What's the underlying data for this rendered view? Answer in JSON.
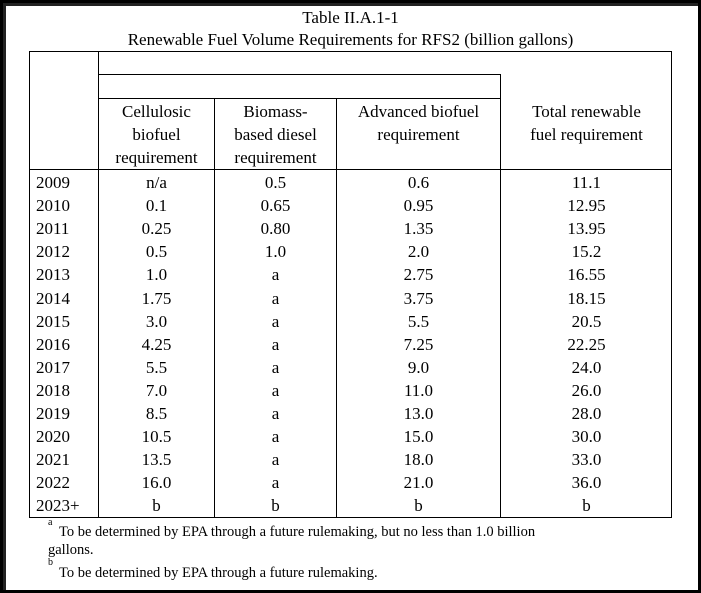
{
  "table": {
    "title": "Table II.A.1-1",
    "subtitle": "Renewable Fuel Volume Requirements for RFS2 (billion gallons)",
    "columns": [
      [
        "Cellulosic",
        "biofuel",
        "requirement"
      ],
      [
        "Biomass-",
        "based diesel",
        "requirement"
      ],
      [
        "Advanced biofuel",
        "requirement"
      ],
      [
        "Total renewable",
        "fuel requirement"
      ]
    ],
    "rows": [
      [
        "2009",
        "n/a",
        "0.5",
        "0.6",
        "11.1"
      ],
      [
        "2010",
        "0.1",
        "0.65",
        "0.95",
        "12.95"
      ],
      [
        "2011",
        "0.25",
        "0.80",
        "1.35",
        "13.95"
      ],
      [
        "2012",
        "0.5",
        "1.0",
        "2.0",
        "15.2"
      ],
      [
        "2013",
        "1.0",
        "a",
        "2.75",
        "16.55"
      ],
      [
        "2014",
        "1.75",
        "a",
        "3.75",
        "18.15"
      ],
      [
        "2015",
        "3.0",
        "a",
        "5.5",
        "20.5"
      ],
      [
        "2016",
        "4.25",
        "a",
        "7.25",
        "22.25"
      ],
      [
        "2017",
        "5.5",
        "a",
        "9.0",
        "24.0"
      ],
      [
        "2018",
        "7.0",
        "a",
        "11.0",
        "26.0"
      ],
      [
        "2019",
        "8.5",
        "a",
        "13.0",
        "28.0"
      ],
      [
        "2020",
        "10.5",
        "a",
        "15.0",
        "30.0"
      ],
      [
        "2021",
        "13.5",
        "a",
        "18.0",
        "33.0"
      ],
      [
        "2022",
        "16.0",
        "a",
        "21.0",
        "36.0"
      ],
      [
        "2023+",
        "b",
        "b",
        "b",
        "b"
      ]
    ]
  },
  "footnotes": {
    "a_mark": "a",
    "a_line1": "To be determined by EPA through a future rulemaking, but no less than 1.0 billion",
    "a_line2": "gallons.",
    "b_mark": "b",
    "b_text": "To be determined by EPA through a future rulemaking."
  }
}
